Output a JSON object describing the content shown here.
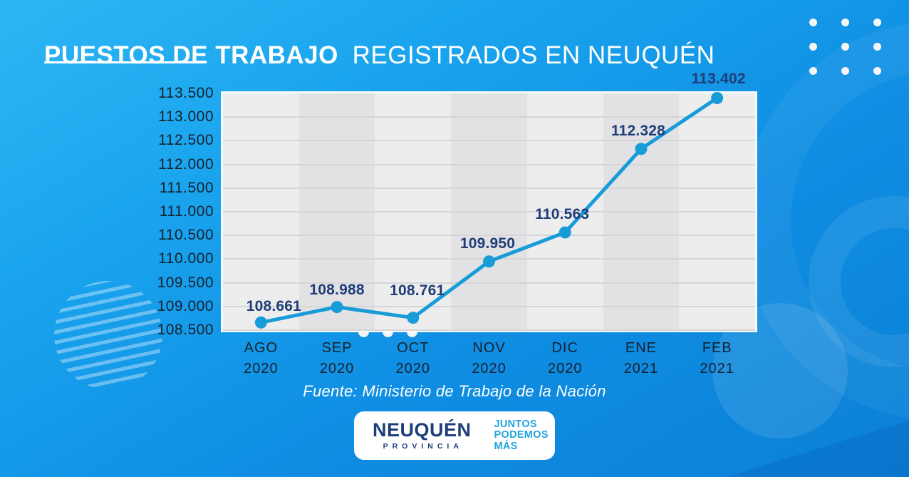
{
  "header": {
    "title_bold": "PUESTOS DE TRABAJO",
    "title_light": "REGISTRADOS EN NEUQUÉN"
  },
  "chart_data": {
    "type": "line",
    "title": "PUESTOS DE TRABAJO REGISTRADOS EN NEUQUÉN",
    "categories_month": [
      "AGO",
      "SEP",
      "OCT",
      "NOV",
      "DIC",
      "ENE",
      "FEB"
    ],
    "categories_year": [
      "2020",
      "2020",
      "2020",
      "2020",
      "2020",
      "2021",
      "2021"
    ],
    "values": [
      108661,
      108988,
      108761,
      109950,
      110563,
      112328,
      113402
    ],
    "point_labels": [
      "108.661",
      "108.988",
      "108.761",
      "109.950",
      "110.563",
      "112.328",
      "113.402"
    ],
    "y_ticks": [
      "113.500",
      "113.000",
      "112.500",
      "112.000",
      "111.500",
      "111.000",
      "110.500",
      "110.000",
      "109.500",
      "109.000",
      "108.500"
    ],
    "ylim": [
      108500,
      113500
    ],
    "grid": true,
    "legend": false,
    "xlabel": "",
    "ylabel": ""
  },
  "source": {
    "text": "Fuente: Ministerio de Trabajo de la Nación"
  },
  "logo": {
    "name": "NEUQUÉN",
    "subtitle": "PROVINCIA",
    "tagline": [
      "JUNTOS",
      "PODEMOS",
      "MÁS"
    ]
  },
  "colors": {
    "line": "#189cd8",
    "point_label": "#1f3d78",
    "axis_label": "#15222f",
    "band_light": "#ededee",
    "band_dark": "#e2e2e4",
    "gridline": "#d5d5d8",
    "logo_navy": "#1d3e7b",
    "logo_cyan": "#21a3de",
    "background_top": "#2eb6f4",
    "background_bottom": "#0a80d5"
  }
}
